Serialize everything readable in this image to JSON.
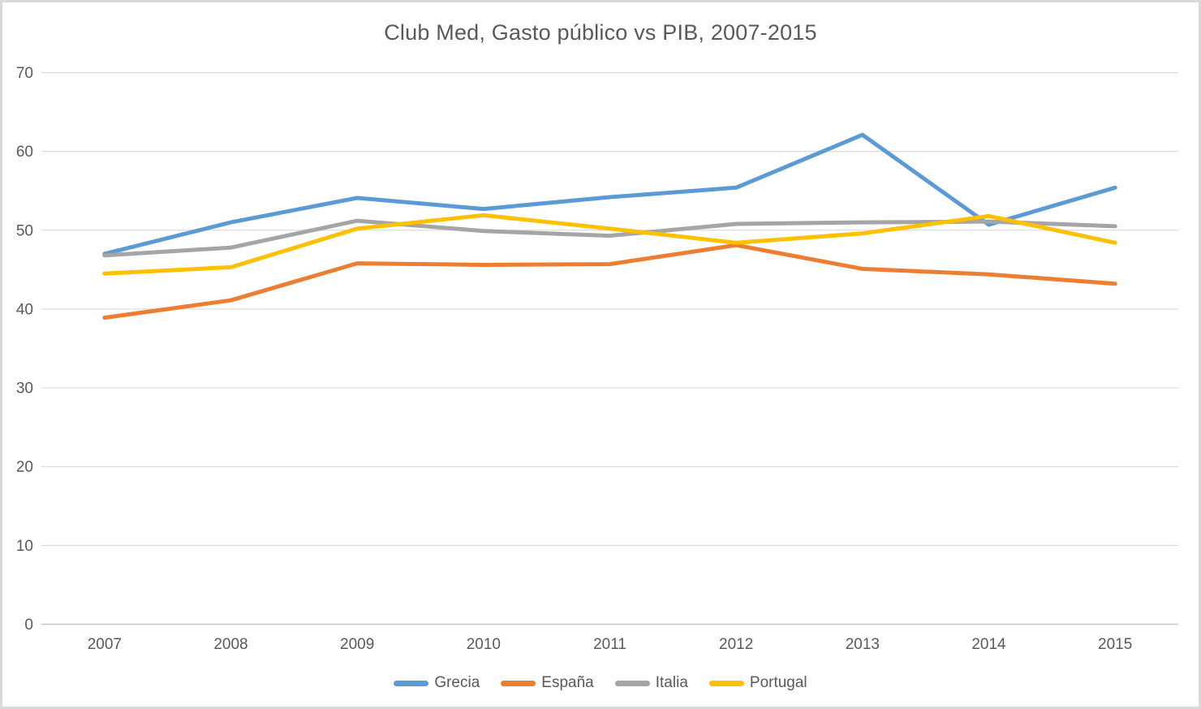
{
  "chart_data": {
    "type": "line",
    "title": "Club Med, Gasto público vs PIB, 2007-2015",
    "categories": [
      "2007",
      "2008",
      "2009",
      "2010",
      "2011",
      "2012",
      "2013",
      "2014",
      "2015"
    ],
    "series": [
      {
        "name": "Grecia",
        "color": "#5B9BD5",
        "values": [
          47.0,
          51.0,
          54.1,
          52.7,
          54.2,
          55.4,
          62.1,
          50.7,
          55.4
        ]
      },
      {
        "name": "España",
        "color": "#ED7D31",
        "values": [
          38.9,
          41.1,
          45.8,
          45.6,
          45.7,
          48.1,
          45.1,
          44.4,
          43.2
        ]
      },
      {
        "name": "Italia",
        "color": "#A5A5A5",
        "values": [
          46.8,
          47.8,
          51.2,
          49.9,
          49.3,
          50.8,
          51.0,
          51.1,
          50.5
        ]
      },
      {
        "name": "Portugal",
        "color": "#FFC000",
        "values": [
          44.5,
          45.3,
          50.2,
          51.9,
          50.2,
          48.4,
          49.6,
          51.8,
          48.4
        ]
      }
    ],
    "xlabel": "",
    "ylabel": "",
    "ylim": [
      0,
      70
    ],
    "yticks": [
      0,
      10,
      20,
      30,
      40,
      50,
      60,
      70
    ],
    "grid": true,
    "legend_position": "bottom",
    "line_width": 5,
    "colors": {
      "grid": "#dcdcdc",
      "axis_line": "#c8c8c8",
      "tick_text": "#595959",
      "title_text": "#595959",
      "legend_text": "#595959",
      "background": "#ffffff",
      "frame_border": "#d9d9d9"
    }
  }
}
